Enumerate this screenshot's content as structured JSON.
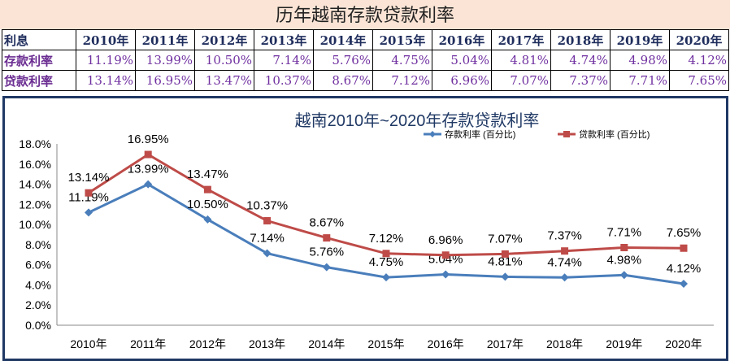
{
  "table": {
    "title": "历年越南存款贷款利率",
    "corner": "利息",
    "years": [
      "2010年",
      "2011年",
      "2012年",
      "2013年",
      "2014年",
      "2015年",
      "2016年",
      "2017年",
      "2018年",
      "2019年",
      "2020年"
    ],
    "rows": [
      {
        "label": "存款利率",
        "values": [
          "11.19%",
          "13.99%",
          "10.50%",
          "7.14%",
          "5.76%",
          "4.75%",
          "5.04%",
          "4.81%",
          "4.74%",
          "4.98%",
          "4.12%"
        ]
      },
      {
        "label": "贷款利率",
        "values": [
          "13.14%",
          "16.95%",
          "13.47%",
          "10.37%",
          "8.67%",
          "7.12%",
          "6.96%",
          "7.07%",
          "7.37%",
          "7.71%",
          "7.65%"
        ]
      }
    ]
  },
  "chart_data": {
    "type": "line",
    "title": "越南2010年~2020年存款贷款利率",
    "categories": [
      "2010年",
      "2011年",
      "2012年",
      "2013年",
      "2014年",
      "2015年",
      "2016年",
      "2017年",
      "2018年",
      "2019年",
      "2020年"
    ],
    "ylim": [
      0,
      18
    ],
    "yticks": [
      "0.0%",
      "2.0%",
      "4.0%",
      "6.0%",
      "8.0%",
      "10.0%",
      "12.0%",
      "14.0%",
      "16.0%",
      "18.0%"
    ],
    "grid": false,
    "legend": "top-right",
    "series": [
      {
        "name": "存款利率 (百分比)",
        "color": "#4a7ebb",
        "marker": "diamond",
        "values": [
          11.19,
          13.99,
          10.5,
          7.14,
          5.76,
          4.75,
          5.04,
          4.81,
          4.74,
          4.98,
          4.12
        ],
        "labels": [
          "11.19%",
          "13.99%",
          "10.50%",
          "7.14%",
          "5.76%",
          "4.75%",
          "5.04%",
          "4.81%",
          "4.74%",
          "4.98%",
          "4.12%"
        ]
      },
      {
        "name": "贷款利率 (百分比)",
        "color": "#be4b48",
        "marker": "square",
        "values": [
          13.14,
          16.95,
          13.47,
          10.37,
          8.67,
          7.12,
          6.96,
          7.07,
          7.37,
          7.71,
          7.65
        ],
        "labels": [
          "13.14%",
          "16.95%",
          "13.47%",
          "10.37%",
          "8.67%",
          "7.12%",
          "6.96%",
          "7.07%",
          "7.37%",
          "7.71%",
          "7.65%"
        ]
      }
    ]
  }
}
